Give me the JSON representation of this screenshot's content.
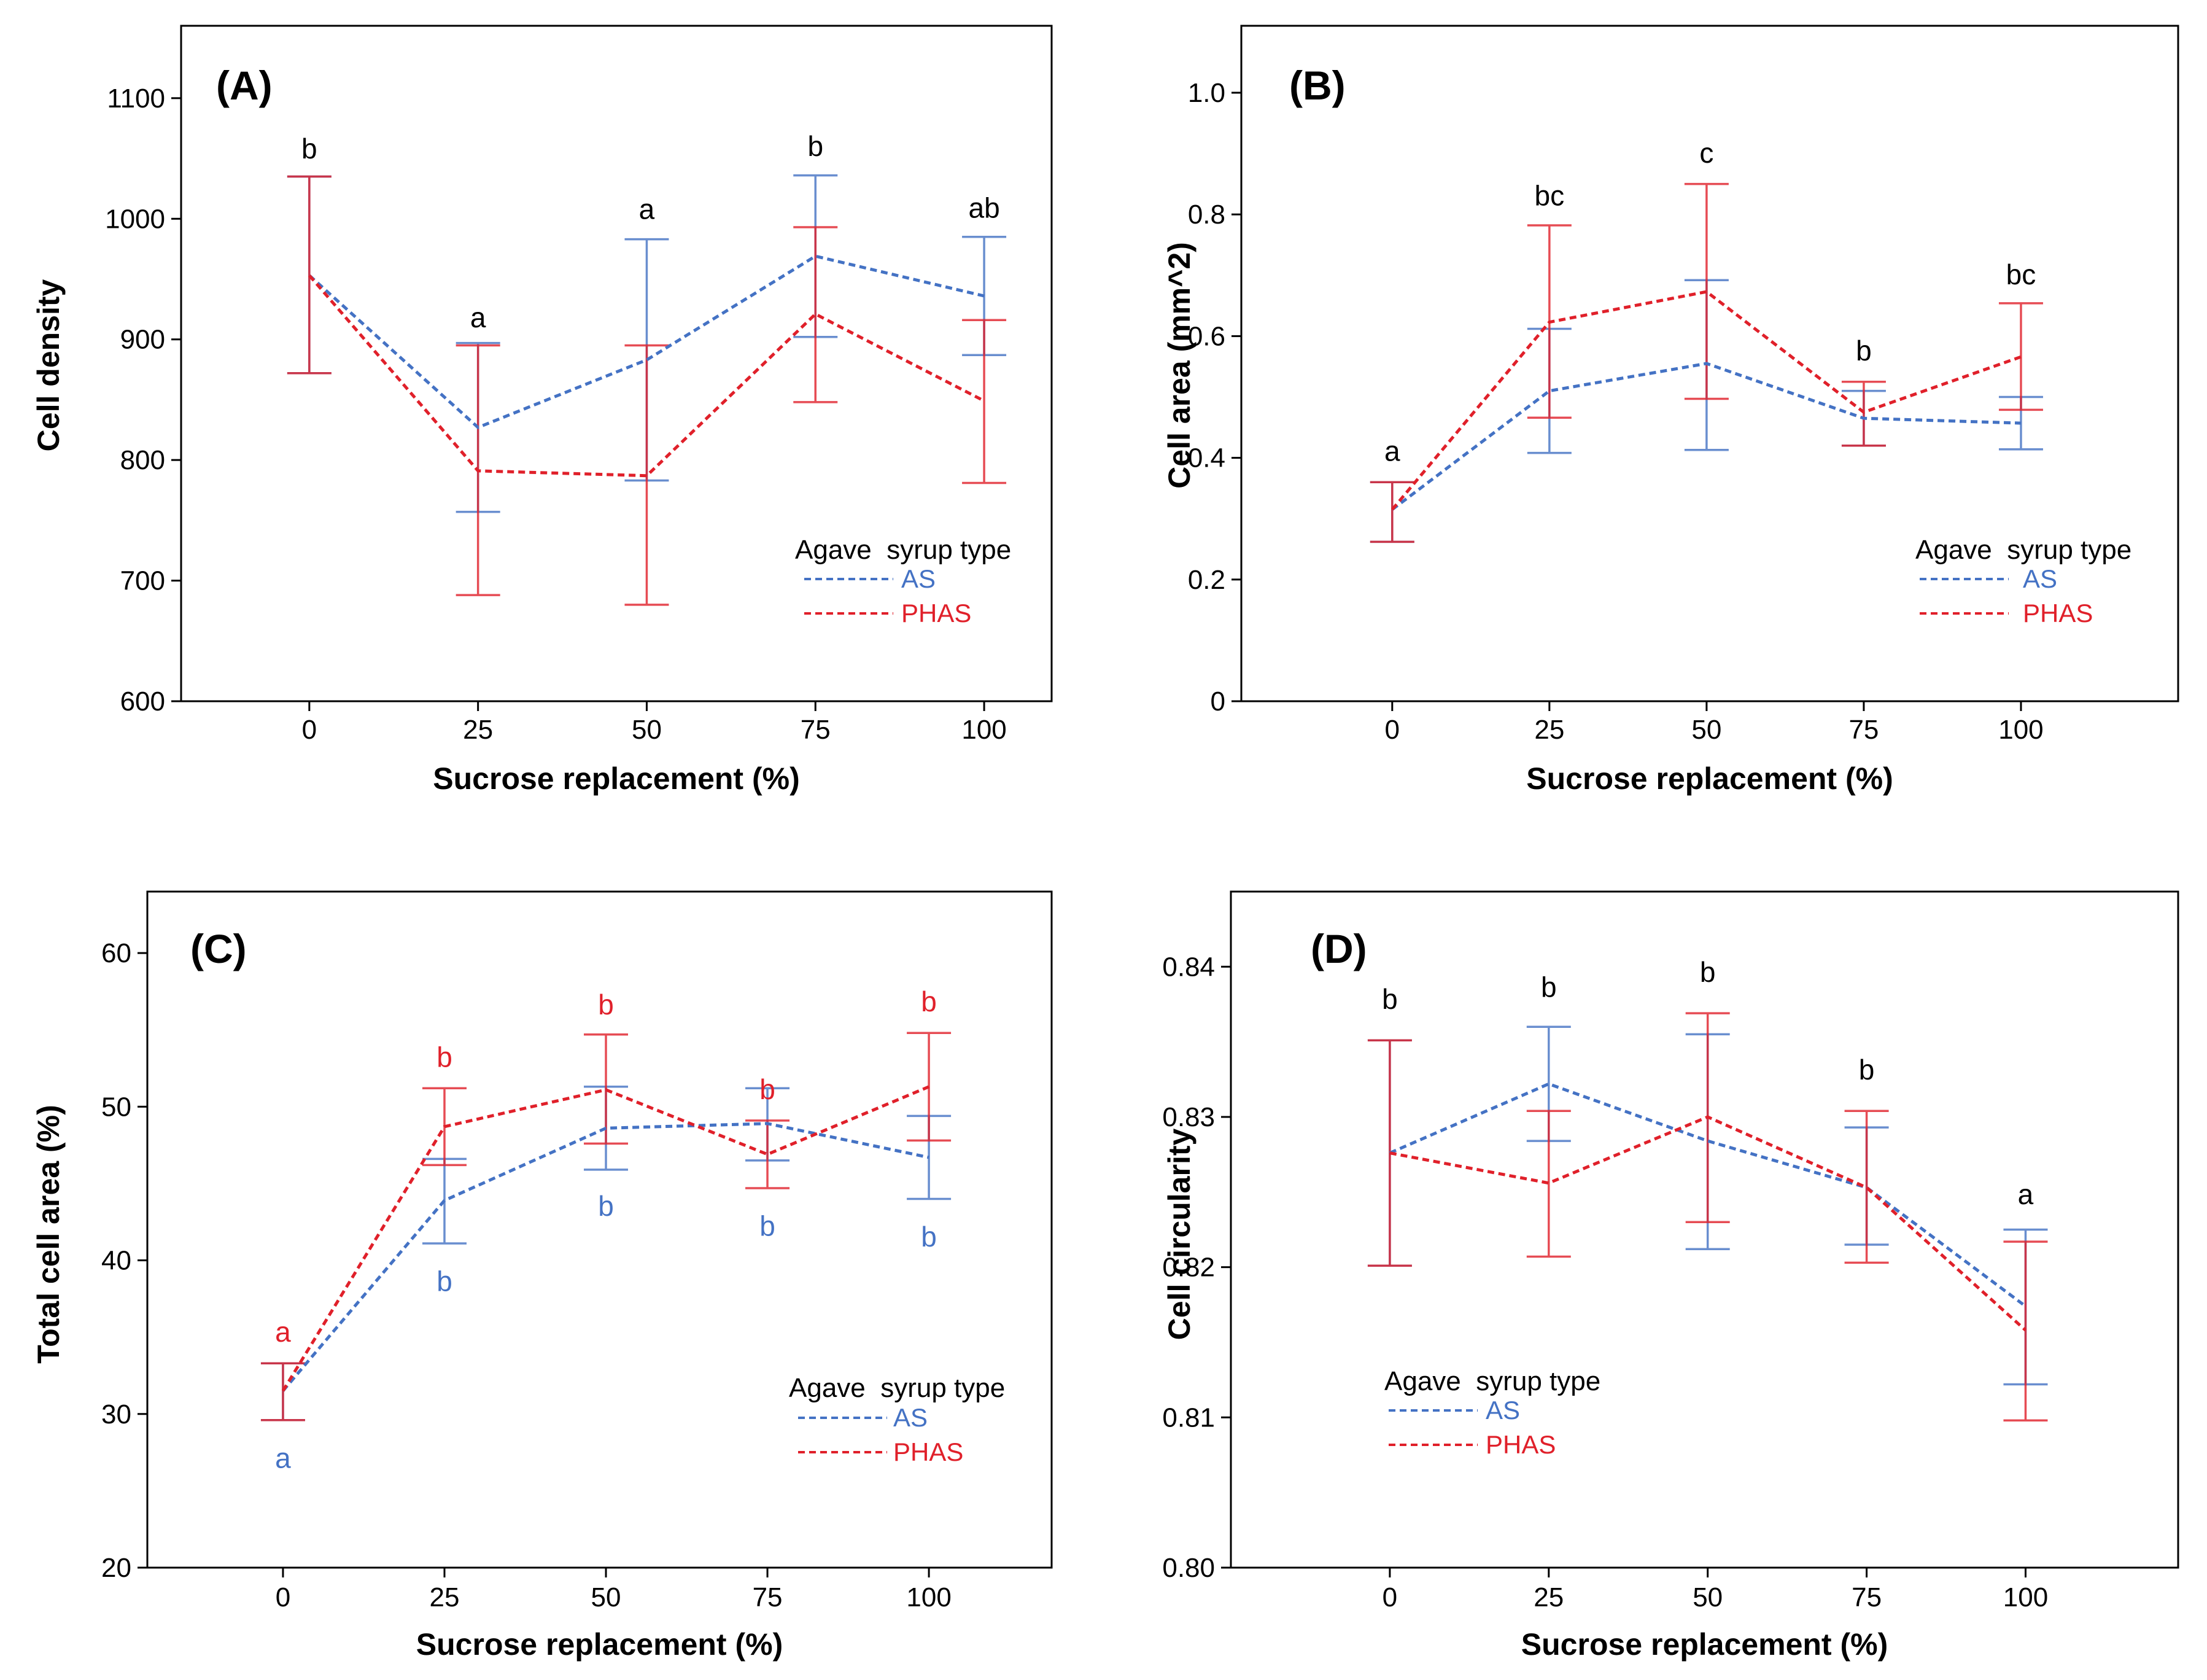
{
  "colors": {
    "AS": "#4472C4",
    "PHAS": "#E0202A",
    "letters_black": "#000000",
    "axis": "#000000"
  },
  "chart_data": [
    {
      "type": "line",
      "panel_label": "(A)",
      "xlabel": "Sucrose replacement (%)",
      "ylabel": "Cell density",
      "x": [
        0,
        25,
        50,
        75,
        100
      ],
      "xlim": [
        -19,
        110
      ],
      "ylim": [
        600,
        1160
      ],
      "yticks": [
        600,
        700,
        800,
        900,
        1000,
        1100
      ],
      "ytick_labels": [
        "600",
        "700",
        "800",
        "900",
        "1000",
        "1100"
      ],
      "legend": {
        "title": "Agave  syrup type",
        "placement": "lower-right"
      },
      "series": [
        {
          "name": "AS",
          "color": "#4472C4",
          "values": [
            953,
            827,
            883,
            969,
            936
          ],
          "upper": [
            1035,
            897,
            983,
            1036,
            985
          ],
          "lower": [
            872,
            757,
            783,
            902,
            887
          ]
        },
        {
          "name": "PHAS",
          "color": "#E0202A",
          "values": [
            953,
            791,
            787,
            921,
            849
          ],
          "upper": [
            1035,
            895,
            895,
            993,
            916
          ],
          "lower": [
            872,
            688,
            680,
            848,
            781
          ]
        }
      ],
      "annotations": [
        {
          "x": 0,
          "y": 1050,
          "text": "b",
          "color": "#000000"
        },
        {
          "x": 25,
          "y": 910,
          "text": "a",
          "color": "#000000"
        },
        {
          "x": 50,
          "y": 1000,
          "text": "a",
          "color": "#000000"
        },
        {
          "x": 75,
          "y": 1052,
          "text": "b",
          "color": "#000000"
        },
        {
          "x": 100,
          "y": 1001,
          "text": "ab",
          "color": "#000000"
        }
      ]
    },
    {
      "type": "line",
      "panel_label": "(B)",
      "xlabel": "Sucrose replacement (%)",
      "ylabel": "Cell area (mm^2)",
      "x": [
        0,
        25,
        50,
        75,
        100
      ],
      "xlim": [
        -24,
        125
      ],
      "ylim": [
        0,
        1.11
      ],
      "yticks": [
        0,
        0.2,
        0.4,
        0.6,
        0.8,
        1.0
      ],
      "ytick_labels": [
        "0",
        "0.2",
        "0.4",
        "0.6",
        "0.8",
        "1.0"
      ],
      "legend": {
        "title": "Agave  syrup type",
        "placement": "lower-right"
      },
      "series": [
        {
          "name": "AS",
          "color": "#4472C4",
          "values": [
            0.315,
            0.51,
            0.555,
            0.465,
            0.457
          ],
          "upper": [
            0.36,
            0.612,
            0.692,
            0.51,
            0.5
          ],
          "lower": [
            0.262,
            0.408,
            0.413,
            0.42,
            0.414
          ]
        },
        {
          "name": "PHAS",
          "color": "#E0202A",
          "values": [
            0.315,
            0.623,
            0.673,
            0.475,
            0.566
          ],
          "upper": [
            0.36,
            0.782,
            0.85,
            0.525,
            0.654
          ],
          "lower": [
            0.262,
            0.466,
            0.497,
            0.42,
            0.479
          ]
        }
      ],
      "annotations": [
        {
          "x": 0,
          "y": 0.395,
          "text": "a",
          "color": "#000000"
        },
        {
          "x": 25,
          "y": 0.815,
          "text": "bc",
          "color": "#000000"
        },
        {
          "x": 50,
          "y": 0.885,
          "text": "c",
          "color": "#000000"
        },
        {
          "x": 75,
          "y": 0.56,
          "text": "b",
          "color": "#000000"
        },
        {
          "x": 100,
          "y": 0.685,
          "text": "bc",
          "color": "#000000"
        }
      ]
    },
    {
      "type": "line",
      "panel_label": "(C)",
      "xlabel": "Sucrose replacement (%)",
      "ylabel": "Total cell area (%)",
      "x": [
        0,
        25,
        50,
        75,
        100
      ],
      "xlim": [
        -21,
        119
      ],
      "ylim": [
        20,
        64
      ],
      "yticks": [
        20,
        30,
        40,
        50,
        60
      ],
      "ytick_labels": [
        "20",
        "30",
        "40",
        "50",
        "60"
      ],
      "legend": {
        "title": "Agave  syrup type",
        "placement": "lower-right"
      },
      "series": [
        {
          "name": "AS",
          "color": "#4472C4",
          "values": [
            31.5,
            43.9,
            48.6,
            48.9,
            46.7
          ],
          "upper": [
            33.3,
            46.6,
            51.3,
            51.2,
            49.4
          ],
          "lower": [
            29.6,
            41.1,
            45.9,
            46.5,
            44.0
          ]
        },
        {
          "name": "PHAS",
          "color": "#E0202A",
          "values": [
            31.5,
            48.7,
            51.1,
            46.9,
            51.3
          ],
          "upper": [
            33.3,
            51.2,
            54.7,
            49.1,
            54.8
          ],
          "lower": [
            29.6,
            46.2,
            47.6,
            44.7,
            47.8
          ]
        }
      ],
      "annotations": [
        {
          "x": 0,
          "y": 34.7,
          "text": "a",
          "color": "#E0202A"
        },
        {
          "x": 25,
          "y": 52.6,
          "text": "b",
          "color": "#E0202A"
        },
        {
          "x": 50,
          "y": 56.0,
          "text": "b",
          "color": "#E0202A"
        },
        {
          "x": 75,
          "y": 50.5,
          "text": "b",
          "color": "#E0202A"
        },
        {
          "x": 100,
          "y": 56.2,
          "text": "b",
          "color": "#E0202A"
        },
        {
          "x": 0,
          "y": 26.5,
          "text": "a",
          "color": "#4472C4"
        },
        {
          "x": 25,
          "y": 38.0,
          "text": "b",
          "color": "#4472C4"
        },
        {
          "x": 50,
          "y": 42.9,
          "text": "b",
          "color": "#4472C4"
        },
        {
          "x": 75,
          "y": 41.6,
          "text": "b",
          "color": "#4472C4"
        },
        {
          "x": 100,
          "y": 40.9,
          "text": "b",
          "color": "#4472C4"
        }
      ]
    },
    {
      "type": "line",
      "panel_label": "(D)",
      "xlabel": "Sucrose replacement (%)",
      "ylabel": "Cell circularity",
      "x": [
        0,
        25,
        50,
        75,
        100
      ],
      "xlim": [
        -25,
        124
      ],
      "ylim": [
        0.8,
        0.845
      ],
      "yticks": [
        0.8,
        0.81,
        0.82,
        0.83,
        0.84
      ],
      "ytick_labels": [
        "0.80",
        "0.81",
        "0.82",
        "0.83",
        "0.84"
      ],
      "legend": {
        "title": "Agave  syrup type",
        "placement": "lower-left"
      },
      "series": [
        {
          "name": "AS",
          "color": "#4472C4",
          "values": [
            0.8276,
            0.8322,
            0.8284,
            0.8253,
            0.8174
          ],
          "upper": [
            0.8351,
            0.836,
            0.8355,
            0.8293,
            0.8225
          ],
          "lower": [
            0.8201,
            0.8284,
            0.8212,
            0.8215,
            0.8122
          ]
        },
        {
          "name": "PHAS",
          "color": "#E0202A",
          "values": [
            0.8276,
            0.8256,
            0.83,
            0.8253,
            0.8158
          ],
          "upper": [
            0.8351,
            0.8304,
            0.8369,
            0.8304,
            0.8217
          ],
          "lower": [
            0.8201,
            0.8207,
            0.823,
            0.8203,
            0.8098
          ]
        }
      ],
      "annotations": [
        {
          "x": 0,
          "y": 0.8372,
          "text": "b",
          "color": "#000000"
        },
        {
          "x": 25,
          "y": 0.838,
          "text": "b",
          "color": "#000000"
        },
        {
          "x": 50,
          "y": 0.839,
          "text": "b",
          "color": "#000000"
        },
        {
          "x": 75,
          "y": 0.8325,
          "text": "b",
          "color": "#000000"
        },
        {
          "x": 100,
          "y": 0.8242,
          "text": "a",
          "color": "#000000"
        }
      ]
    }
  ]
}
